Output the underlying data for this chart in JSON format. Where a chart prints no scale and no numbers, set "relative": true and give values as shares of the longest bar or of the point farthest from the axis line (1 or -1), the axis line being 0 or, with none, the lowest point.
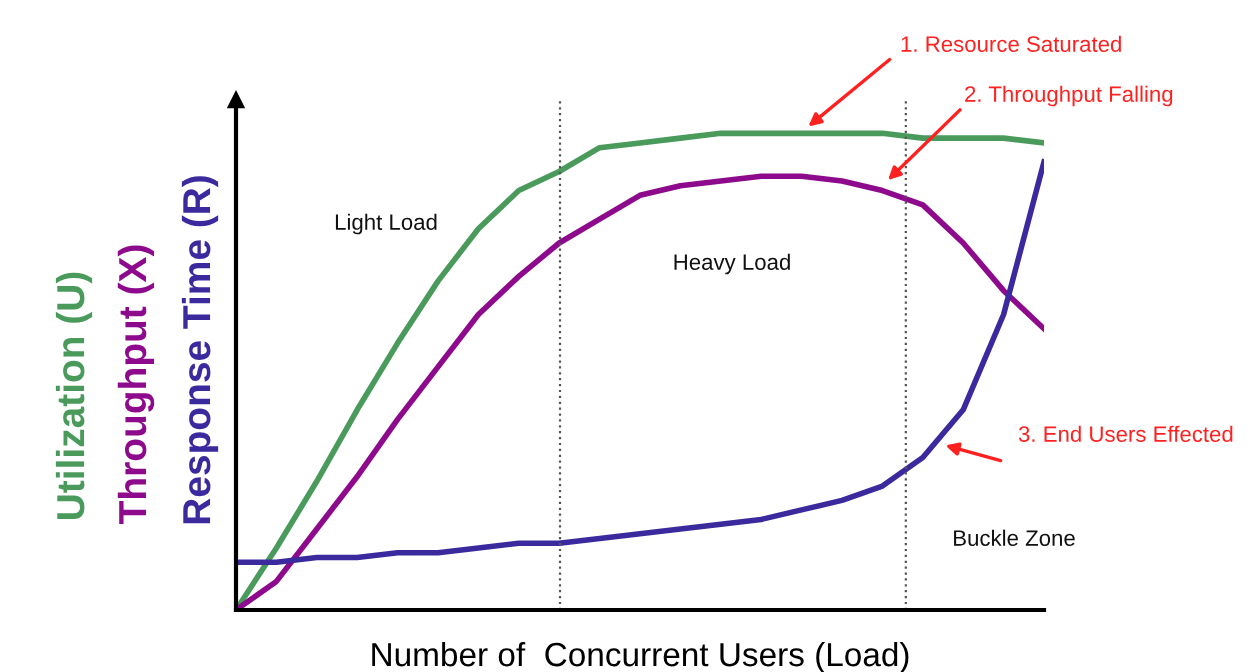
{
  "chart_data": {
    "type": "line",
    "relative": true,
    "xlabel": "Number of  Concurrent Users (Load)",
    "categories": [
      null,
      null,
      null,
      null,
      null,
      null,
      null,
      null,
      null,
      null,
      null,
      null,
      null,
      null,
      null,
      null,
      null,
      null,
      null,
      null,
      null
    ],
    "series": [
      {
        "name": "Utilization (U)",
        "color": "#4a9a5c",
        "values": [
          0,
          0.13,
          0.27,
          0.42,
          0.56,
          0.69,
          0.8,
          0.88,
          0.92,
          0.97,
          0.98,
          0.99,
          1,
          1,
          1,
          1,
          1,
          0.99,
          0.99,
          0.99,
          0.98
        ]
      },
      {
        "name": "Throughput (X)",
        "color": "#8e0a8c",
        "values": [
          0,
          0.06,
          0.17,
          0.28,
          0.4,
          0.51,
          0.62,
          0.7,
          0.77,
          0.82,
          0.87,
          0.89,
          0.9,
          0.91,
          0.91,
          0.9,
          0.88,
          0.85,
          0.77,
          0.67,
          0.59
        ]
      },
      {
        "name": "Response Time (R)",
        "color": "#3b2a9e",
        "values": [
          0.1,
          0.1,
          0.11,
          0.11,
          0.12,
          0.12,
          0.13,
          0.14,
          0.14,
          0.15,
          0.16,
          0.17,
          0.18,
          0.19,
          0.21,
          0.23,
          0.26,
          0.32,
          0.42,
          0.62,
          0.94
        ]
      }
    ],
    "annotations": [
      "Light Load",
      "Heavy Load",
      "Buckle Zone",
      "1. Resource Saturated",
      "2. Throughput Falling",
      "3. End Users Effected"
    ],
    "grid": false,
    "legend": false,
    "marker": "none",
    "line_style": "solid"
  }
}
